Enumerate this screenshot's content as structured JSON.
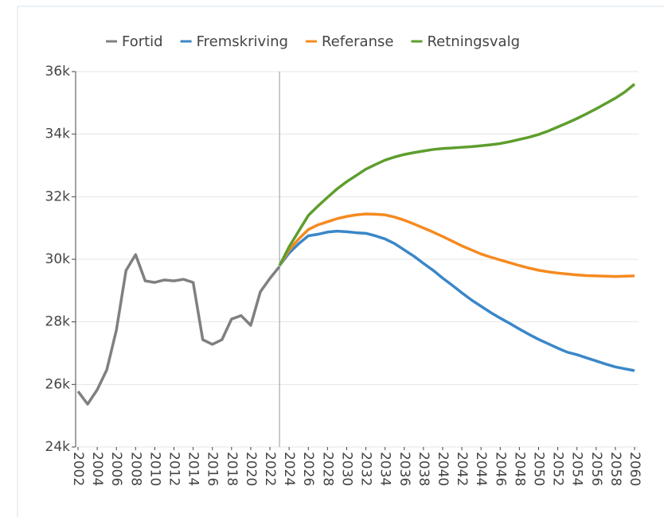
{
  "chart_data": {
    "type": "line",
    "x": [
      2002,
      2003,
      2004,
      2005,
      2006,
      2007,
      2008,
      2009,
      2010,
      2011,
      2012,
      2013,
      2014,
      2015,
      2016,
      2017,
      2018,
      2019,
      2020,
      2021,
      2022,
      2023,
      2024,
      2025,
      2026,
      2027,
      2028,
      2029,
      2030,
      2031,
      2032,
      2033,
      2034,
      2035,
      2036,
      2037,
      2038,
      2039,
      2040,
      2041,
      2042,
      2043,
      2044,
      2045,
      2046,
      2047,
      2048,
      2049,
      2050,
      2051,
      2052,
      2053,
      2054,
      2055,
      2056,
      2057,
      2058,
      2059,
      2060
    ],
    "series": [
      {
        "name": "Fortid",
        "color": "#808080",
        "values": [
          25780,
          25370,
          25830,
          26470,
          27740,
          29640,
          30150,
          29310,
          29260,
          29340,
          29310,
          29360,
          29260,
          27430,
          27280,
          27430,
          28090,
          28200,
          27890,
          28960,
          29390,
          29770,
          null,
          null,
          null,
          null,
          null,
          null,
          null,
          null,
          null,
          null,
          null,
          null,
          null,
          null,
          null,
          null,
          null,
          null,
          null,
          null,
          null,
          null,
          null,
          null,
          null,
          null,
          null,
          null,
          null,
          null,
          null,
          null,
          null,
          null,
          null,
          null,
          null
        ]
      },
      {
        "name": "Fremskriving",
        "color": "#3a87c8",
        "values": [
          null,
          null,
          null,
          null,
          null,
          null,
          null,
          null,
          null,
          null,
          null,
          null,
          null,
          null,
          null,
          null,
          null,
          null,
          null,
          null,
          null,
          29800,
          30200,
          30500,
          30750,
          30800,
          30870,
          30900,
          30880,
          30850,
          30830,
          30750,
          30650,
          30500,
          30300,
          30100,
          29870,
          29650,
          29400,
          29170,
          28930,
          28700,
          28500,
          28300,
          28120,
          27950,
          27770,
          27600,
          27440,
          27300,
          27160,
          27030,
          26950,
          26850,
          26750,
          26650,
          26560,
          26500,
          26440
        ]
      },
      {
        "name": "Referanse",
        "color": "#f58a1f",
        "values": [
          null,
          null,
          null,
          null,
          null,
          null,
          null,
          null,
          null,
          null,
          null,
          null,
          null,
          null,
          null,
          null,
          null,
          null,
          null,
          null,
          null,
          29800,
          30300,
          30650,
          30950,
          31100,
          31200,
          31300,
          31370,
          31420,
          31450,
          31440,
          31420,
          31350,
          31250,
          31130,
          31000,
          30870,
          30730,
          30580,
          30430,
          30300,
          30170,
          30070,
          29980,
          29890,
          29800,
          29720,
          29650,
          29600,
          29560,
          29530,
          29500,
          29480,
          29470,
          29460,
          29450,
          29460,
          29470
        ]
      },
      {
        "name": "Retningsvalg",
        "color": "#5e9e2d",
        "values": [
          null,
          null,
          null,
          null,
          null,
          null,
          null,
          null,
          null,
          null,
          null,
          null,
          null,
          null,
          null,
          null,
          null,
          null,
          null,
          null,
          null,
          29800,
          30400,
          30900,
          31400,
          31700,
          31980,
          32250,
          32480,
          32680,
          32880,
          33030,
          33170,
          33270,
          33350,
          33410,
          33460,
          33510,
          33540,
          33560,
          33580,
          33600,
          33630,
          33660,
          33700,
          33760,
          33830,
          33900,
          33990,
          34100,
          34230,
          34360,
          34500,
          34650,
          34810,
          34980,
          35150,
          35350,
          35600
        ]
      }
    ],
    "xlim": [
      2002,
      2060
    ],
    "xticks": [
      2002,
      2004,
      2006,
      2008,
      2010,
      2012,
      2014,
      2016,
      2018,
      2020,
      2022,
      2024,
      2026,
      2028,
      2030,
      2032,
      2034,
      2036,
      2038,
      2040,
      2042,
      2044,
      2046,
      2048,
      2050,
      2052,
      2054,
      2056,
      2058,
      2060
    ],
    "ylim": [
      24000,
      36000
    ],
    "yticks": [
      {
        "value": 24000,
        "label": "24k"
      },
      {
        "value": 26000,
        "label": "26k"
      },
      {
        "value": 28000,
        "label": "28k"
      },
      {
        "value": 30000,
        "label": "30k"
      },
      {
        "value": 32000,
        "label": "32k"
      },
      {
        "value": 34000,
        "label": "34k"
      },
      {
        "value": 36000,
        "label": "36k"
      }
    ],
    "vline_x": 2023,
    "grid": true,
    "legend": "top"
  }
}
